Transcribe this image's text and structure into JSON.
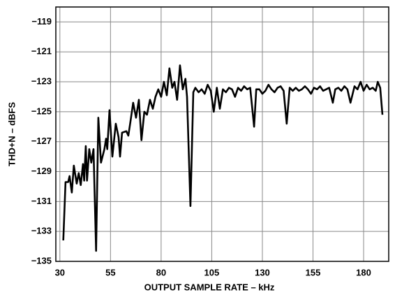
{
  "chart_data": {
    "type": "line",
    "xlabel": "OUTPUT SAMPLE RATE – kHz",
    "ylabel": "THD+N – dBFS",
    "xlim": [
      28,
      192.4
    ],
    "ylim": [
      -135,
      -118
    ],
    "xticks": [
      30,
      55,
      80,
      105,
      130,
      155,
      180
    ],
    "yticks": [
      {
        "value": -135,
        "label": "−135"
      },
      {
        "value": -133,
        "label": "−133"
      },
      {
        "value": -131,
        "label": "−131"
      },
      {
        "value": -129,
        "label": "−129"
      },
      {
        "value": -127,
        "label": "−127"
      },
      {
        "value": -125,
        "label": "−125"
      },
      {
        "value": -123,
        "label": "−123"
      },
      {
        "value": -121,
        "label": "−121"
      },
      {
        "value": -119,
        "label": "−119"
      }
    ],
    "grid": true,
    "series": [
      {
        "color": "#000000",
        "x": [
          31.7,
          32.8,
          34.1,
          34.8,
          35.9,
          36.9,
          38.3,
          39.3,
          40.3,
          41.4,
          42,
          42.8,
          43.4,
          44.5,
          45.5,
          46.6,
          47.9,
          49,
          50.3,
          52,
          52.8,
          53.4,
          54.5,
          55.9,
          57.6,
          59,
          59.7,
          60.7,
          62.8,
          63.8,
          64.8,
          66.2,
          67.6,
          69,
          70.3,
          71.7,
          73,
          74.5,
          75.9,
          77.2,
          78.6,
          80,
          81.4,
          82.8,
          84.1,
          85.5,
          86.6,
          87.9,
          89.3,
          90.7,
          92,
          92.8,
          94.5,
          95.9,
          96.9,
          98.5,
          100,
          101.5,
          103,
          104.5,
          106,
          107.5,
          109,
          110.5,
          112,
          113.5,
          115,
          116.5,
          118,
          119.5,
          121,
          122.5,
          124,
          125.9,
          127,
          128.5,
          130,
          131.5,
          133,
          134.5,
          136,
          137.5,
          139,
          140.5,
          142,
          143.5,
          145,
          146.5,
          148,
          149.5,
          151,
          152.5,
          154,
          155.5,
          157,
          158.5,
          160,
          161.5,
          163,
          164.8,
          166,
          167.5,
          169,
          170.5,
          172,
          173.5,
          175.5,
          177,
          178.5,
          180,
          181.5,
          183,
          184.5,
          186,
          187,
          188.2,
          189.3
        ],
        "values": [
          -133.6,
          -129.7,
          -129.7,
          -129.3,
          -130.4,
          -128.6,
          -129.8,
          -129.1,
          -129.9,
          -128.5,
          -129.6,
          -127.3,
          -129.6,
          -127.5,
          -128.4,
          -127.5,
          -134.3,
          -125.4,
          -128.4,
          -127.5,
          -126.8,
          -127.5,
          -124.9,
          -128.0,
          -125.8,
          -126.7,
          -128.0,
          -126.4,
          -126.3,
          -126.6,
          -125.7,
          -124.4,
          -125.4,
          -124.2,
          -126.9,
          -125.0,
          -125.2,
          -124.2,
          -124.8,
          -124.0,
          -123.5,
          -124.0,
          -123.0,
          -123.9,
          -122.1,
          -123.4,
          -123.0,
          -124.2,
          -121.9,
          -123.5,
          -122.8,
          -124.0,
          -131.3,
          -123.7,
          -123.4,
          -123.7,
          -123.5,
          -123.8,
          -123.2,
          -123.6,
          -125.0,
          -123.4,
          -124.8,
          -123.5,
          -123.7,
          -123.4,
          -123.5,
          -124.0,
          -123.4,
          -123.6,
          -123.3,
          -123.5,
          -123.4,
          -126.0,
          -123.5,
          -123.5,
          -123.8,
          -123.6,
          -123.2,
          -123.5,
          -123.7,
          -123.4,
          -123.3,
          -123.6,
          -125.8,
          -123.4,
          -123.6,
          -123.4,
          -123.6,
          -123.5,
          -123.3,
          -123.5,
          -123.8,
          -123.4,
          -123.5,
          -123.3,
          -123.6,
          -123.5,
          -123.4,
          -124.4,
          -123.5,
          -123.4,
          -123.6,
          -123.3,
          -123.5,
          -124.4,
          -123.3,
          -123.5,
          -123.0,
          -123.6,
          -123.2,
          -123.5,
          -123.4,
          -123.6,
          -123.0,
          -123.4,
          -125.2
        ]
      }
    ]
  }
}
